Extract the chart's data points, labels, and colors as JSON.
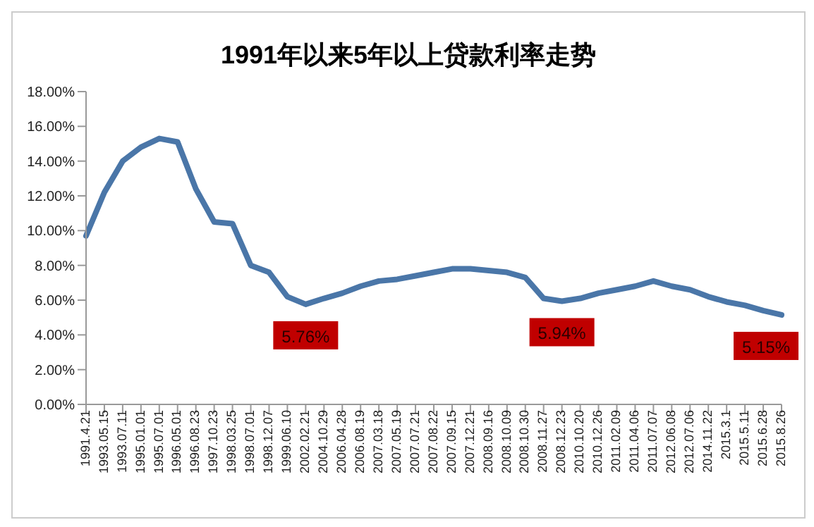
{
  "chart_data": {
    "type": "line",
    "title": "1991年以来5年以上贷款利率走势",
    "categories": [
      "1991.4.21",
      "1993.05.15",
      "1993.07.11",
      "1995.01.01",
      "1995.07.01",
      "1996.05.01",
      "1996.08.23",
      "1997.10.23",
      "1998.03.25",
      "1998.07.01",
      "1998.12.07",
      "1999.06.10",
      "2002.02.21",
      "2004.10.29",
      "2006.04.28",
      "2006.08.19",
      "2007.03.18",
      "2007.05.19",
      "2007.07.21",
      "2007.08.22",
      "2007.09.15",
      "2007.12.21",
      "2008.09.16",
      "2008.10.09",
      "2008.10.30",
      "2008.11.27",
      "2008.12.23",
      "2010.10.20",
      "2010.12.26",
      "2011.02.09",
      "2011.04.06",
      "2011.07.07",
      "2012.06.08",
      "2012.07.06",
      "2014.11.22",
      "2015.3.1",
      "2015.5.11",
      "2015.6.28",
      "2015.8.26"
    ],
    "series": [
      {
        "color": "#4a76a8",
        "values": [
          9.7,
          12.2,
          14.0,
          14.8,
          15.3,
          15.1,
          12.4,
          10.5,
          10.4,
          8.0,
          7.6,
          6.2,
          5.76,
          6.1,
          6.4,
          6.8,
          7.1,
          7.2,
          7.4,
          7.6,
          7.8,
          7.8,
          7.7,
          7.6,
          7.3,
          6.1,
          5.94,
          6.1,
          6.4,
          6.6,
          6.8,
          7.1,
          6.8,
          6.6,
          6.2,
          5.9,
          5.7,
          5.4,
          5.15
        ]
      }
    ],
    "ylim": [
      0,
      18
    ],
    "yticks": [
      {
        "value": 0,
        "label": "0.00%"
      },
      {
        "value": 2,
        "label": "2.00%"
      },
      {
        "value": 4,
        "label": "4.00%"
      },
      {
        "value": 6,
        "label": "6.00%"
      },
      {
        "value": 8,
        "label": "8.00%"
      },
      {
        "value": 10,
        "label": "10.00%"
      },
      {
        "value": 12,
        "label": "12.00%"
      },
      {
        "value": 14,
        "label": "14.00%"
      },
      {
        "value": 16,
        "label": "16.00%"
      },
      {
        "value": 18,
        "label": "18.00%"
      }
    ],
    "grid": false,
    "legend": false,
    "marker": "none",
    "line_style": "solid",
    "annotations": [
      {
        "text": "5.76%",
        "x": "2002.02.21",
        "y": 5.76
      },
      {
        "text": "5.94%",
        "x": "2008.12.23",
        "y": 5.94
      },
      {
        "text": "5.15%",
        "x": "2015.8.26",
        "y": 5.15
      }
    ]
  }
}
